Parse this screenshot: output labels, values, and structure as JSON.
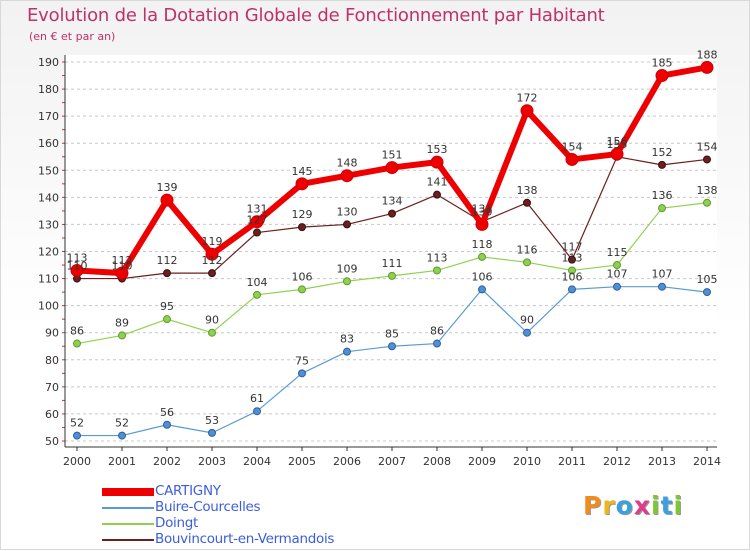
{
  "title": "Evolution de la Dotation Globale de Fonctionnement par Habitant",
  "subtitle": "(en € et par an)",
  "brand": {
    "text": "Proxiti",
    "letters": [
      "P",
      "r",
      "o",
      "x",
      "i",
      "t",
      "i"
    ],
    "colors": [
      "#f08c1c",
      "#f0b41c",
      "#3aa0e0",
      "#e03c8c",
      "#7cc832",
      "#3aa0e0",
      "#7cc832"
    ]
  },
  "chart_data": {
    "type": "line",
    "title": "Evolution de la Dotation Globale de Fonctionnement par Habitant",
    "subtitle": "(en € et par an)",
    "xlabel": "",
    "ylabel": "",
    "x": [
      "2000",
      "2001",
      "2002",
      "2003",
      "2004",
      "2005",
      "2006",
      "2007",
      "2008",
      "2009",
      "2010",
      "2011",
      "2012",
      "2013",
      "2014"
    ],
    "ylim": [
      50,
      190
    ],
    "yticks": [
      50,
      60,
      70,
      80,
      90,
      100,
      110,
      120,
      130,
      140,
      150,
      160,
      170,
      180,
      190
    ],
    "grid": "horizontal dashed",
    "legend": "bottom-left",
    "series": [
      {
        "name": "CARTIGNY",
        "color": "#ee0000",
        "values": [
          113,
          112,
          139,
          119,
          131,
          145,
          148,
          151,
          153,
          130,
          172,
          154,
          156,
          185,
          188
        ]
      },
      {
        "name": "Buire-Courcelles",
        "color": "#5b9bd5",
        "values": [
          52,
          52,
          56,
          53,
          61,
          75,
          83,
          85,
          86,
          106,
          90,
          106,
          107,
          107,
          105
        ]
      },
      {
        "name": "Doingt",
        "color": "#8fd14f",
        "values": [
          86,
          89,
          95,
          90,
          104,
          106,
          109,
          111,
          113,
          118,
          116,
          113,
          115,
          136,
          138
        ]
      },
      {
        "name": "Bouvincourt-en-Vermandois",
        "color": "#6b1f1f",
        "values": [
          110,
          110,
          112,
          112,
          127,
          129,
          130,
          134,
          141,
          131,
          138,
          117,
          155,
          152,
          154
        ]
      }
    ]
  }
}
